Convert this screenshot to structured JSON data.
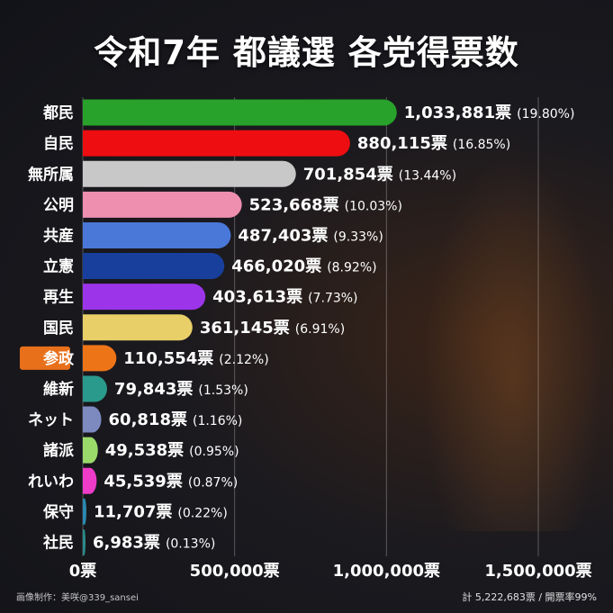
{
  "title": "令和7年 都議選 各党得票数",
  "footer": {
    "credit": "画像制作：美咲@339_sansei",
    "summary": "計 5,222,683票 / 開票率99%"
  },
  "colors": {
    "highlight_label_bg": "#e8701a"
  },
  "chart_data": {
    "type": "bar",
    "orientation": "horizontal",
    "title": "令和7年 都議選 各党得票数",
    "xlim": [
      0,
      1500000
    ],
    "xticks": [
      0,
      500000,
      1000000,
      1500000
    ],
    "xtick_labels": [
      "0票",
      "500,000票",
      "1,000,000票",
      "1,500,000票"
    ],
    "unit": "票",
    "grid": true,
    "categories": [
      "都民",
      "自民",
      "無所属",
      "公明",
      "共産",
      "立憲",
      "再生",
      "国民",
      "参政",
      "維新",
      "ネット",
      "諸派",
      "れいわ",
      "保守",
      "社民"
    ],
    "values": [
      1033881,
      880115,
      701854,
      523668,
      487403,
      466020,
      403613,
      361145,
      110554,
      79843,
      60818,
      49538,
      45539,
      11707,
      6983
    ],
    "value_labels": [
      "1,033,881票",
      "880,115票",
      "701,854票",
      "523,668票",
      "487,403票",
      "466,020票",
      "403,613票",
      "361,145票",
      "110,554票",
      "79,843票",
      "60,818票",
      "49,538票",
      "45,539票",
      "11,707票",
      "6,983票"
    ],
    "percent_labels": [
      "(19.80%)",
      "(16.85%)",
      "(13.44%)",
      "(10.03%)",
      "(9.33%)",
      "(8.92%)",
      "(7.73%)",
      "(6.91%)",
      "(2.12%)",
      "(1.53%)",
      "(1.16%)",
      "(0.95%)",
      "(0.87%)",
      "(0.22%)",
      "(0.13%)"
    ],
    "bar_colors": [
      "#28a22a",
      "#ee0d10",
      "#c8c8c8",
      "#ee8fb0",
      "#4a78d8",
      "#183f9c",
      "#9c35ea",
      "#e8cf68",
      "#ee7418",
      "#2a9a8c",
      "#7c8ac0",
      "#9ada6a",
      "#ee3cc8",
      "#2a8ab0",
      "#2a8a8a"
    ],
    "highlighted_category": "参政"
  }
}
